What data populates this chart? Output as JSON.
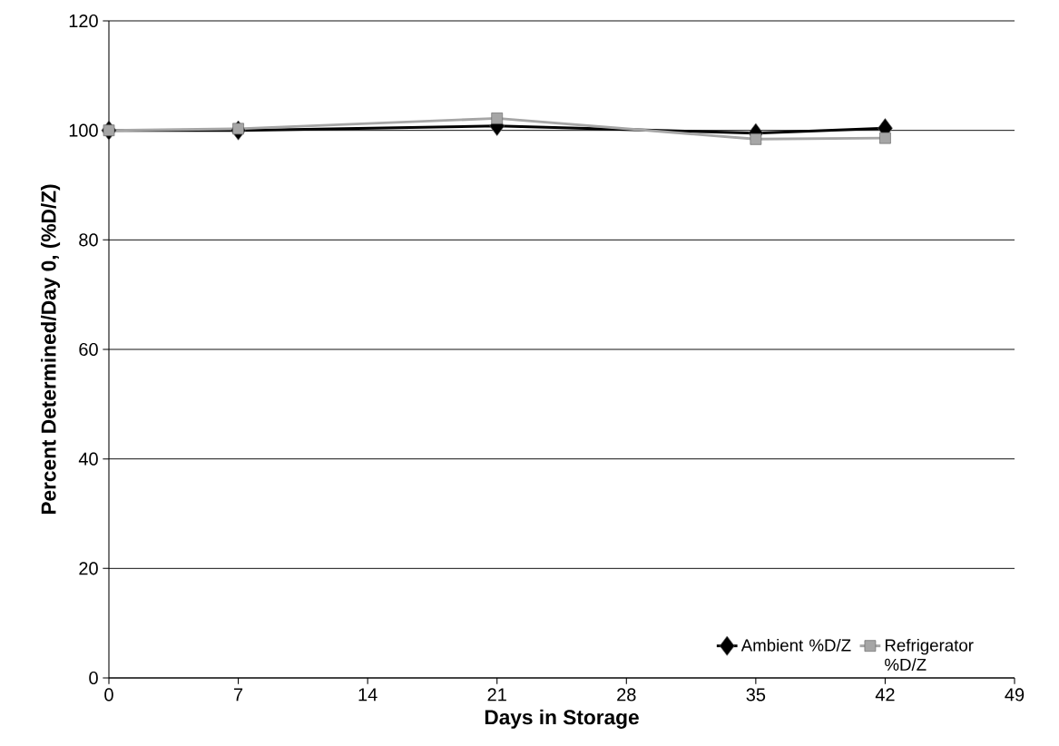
{
  "chart_data": {
    "type": "line",
    "xlabel": "Days in Storage",
    "ylabel": "Percent Determined/Day 0, (%D/Z)",
    "x": [
      0,
      7,
      21,
      35,
      42
    ],
    "series": [
      {
        "name": "Ambient %D/Z",
        "color": "#000000",
        "marker": "diamond",
        "values": [
          100,
          100,
          100.8,
          99.5,
          100.4
        ]
      },
      {
        "name": "Refrigerator %D/Z",
        "color": "#a6a6a6",
        "marker": "square",
        "values": [
          100,
          100.3,
          102.2,
          98.4,
          98.6
        ]
      }
    ],
    "xlim": [
      0,
      49
    ],
    "xticks": [
      0,
      7,
      14,
      21,
      28,
      35,
      42,
      49
    ],
    "ylim": [
      0,
      120
    ],
    "yticks": [
      0,
      20,
      40,
      60,
      80,
      100,
      120
    ],
    "grid": "y",
    "legend": "bottom right",
    "line_style": "solid"
  }
}
